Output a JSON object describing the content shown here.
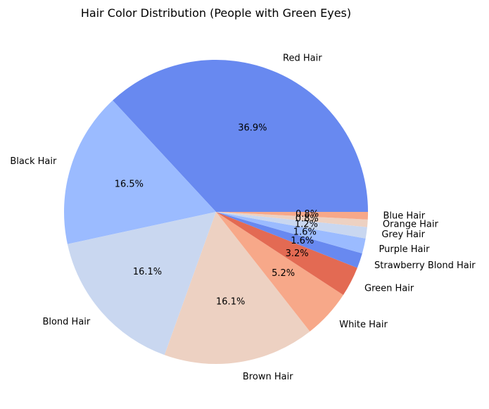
{
  "chart_data": {
    "type": "pie",
    "title": "Hair Color Distribution (People with Green Eyes)",
    "autopct_format": "percent_one_decimal",
    "start_angle_deg": 0,
    "direction": "counterclockwise",
    "slices": [
      {
        "label": "Red Hair",
        "value": 36.9,
        "pct_text": "36.9%",
        "color": "#6889f0"
      },
      {
        "label": "Black Hair",
        "value": 16.5,
        "pct_text": "16.5%",
        "color": "#9bbbff"
      },
      {
        "label": "Blond Hair",
        "value": 16.1,
        "pct_text": "16.1%",
        "color": "#c9d7f0"
      },
      {
        "label": "Brown Hair",
        "value": 16.1,
        "pct_text": "16.1%",
        "color": "#edd1c2"
      },
      {
        "label": "White Hair",
        "value": 5.2,
        "pct_text": "5.2%",
        "color": "#f7a889"
      },
      {
        "label": "Green Hair",
        "value": 3.2,
        "pct_text": "3.2%",
        "color": "#e36a53"
      },
      {
        "label": "Strawberry Blond Hair",
        "value": 1.6,
        "pct_text": "1.6%",
        "color": "#6889f0"
      },
      {
        "label": "Purple Hair",
        "value": 1.6,
        "pct_text": "1.6%",
        "color": "#9bbbff"
      },
      {
        "label": "Grey Hair",
        "value": 1.2,
        "pct_text": "1.2%",
        "color": "#c9d7f0"
      },
      {
        "label": "Orange Hair",
        "value": 0.8,
        "pct_text": "0.8%",
        "color": "#edd1c2"
      },
      {
        "label": "Blue Hair",
        "value": 0.8,
        "pct_text": "0.8%",
        "color": "#f7a889"
      }
    ]
  }
}
